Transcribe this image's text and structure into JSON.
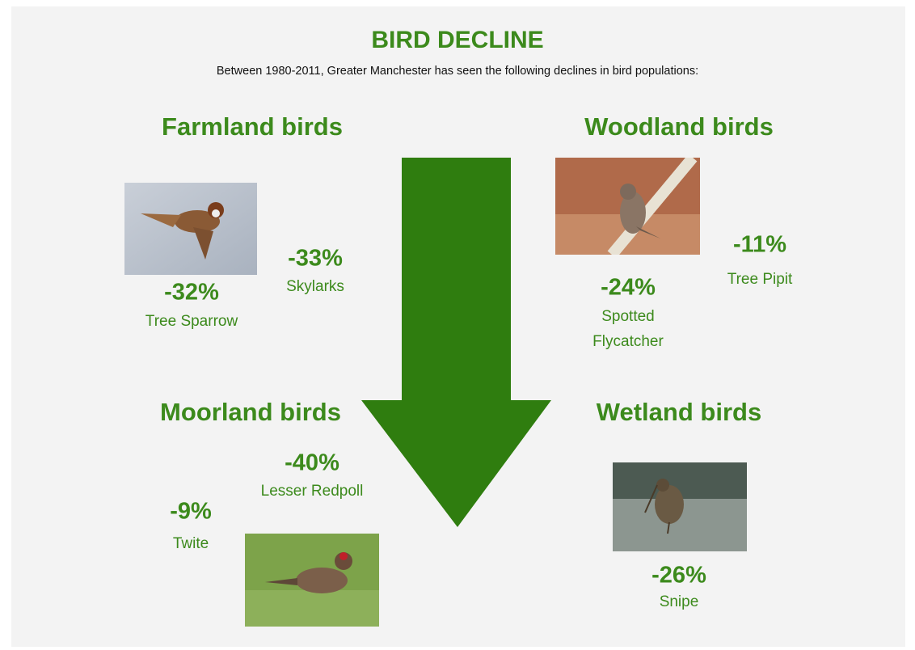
{
  "title": "BIRD DECLINE",
  "subtitle": "Between 1980-2011, Greater Manchester has seen the following declines in bird populations:",
  "groups": [
    {
      "heading": "Farmland birds",
      "birds": [
        {
          "change": "-32%",
          "name": "Tree Sparrow"
        },
        {
          "change": "-33%",
          "name": "Skylarks"
        }
      ]
    },
    {
      "heading": "Woodland birds",
      "birds": [
        {
          "change": "-24%",
          "name": "Spotted Flycatcher"
        },
        {
          "change": "-11%",
          "name": "Tree Pipit"
        }
      ]
    },
    {
      "heading": "Moorland birds",
      "birds": [
        {
          "change": "-40%",
          "name": "Lesser Redpoll"
        },
        {
          "change": "-9%",
          "name": "Twite"
        }
      ]
    },
    {
      "heading": "Wetland birds",
      "birds": [
        {
          "change": "-26%",
          "name": "Snipe"
        }
      ]
    }
  ]
}
